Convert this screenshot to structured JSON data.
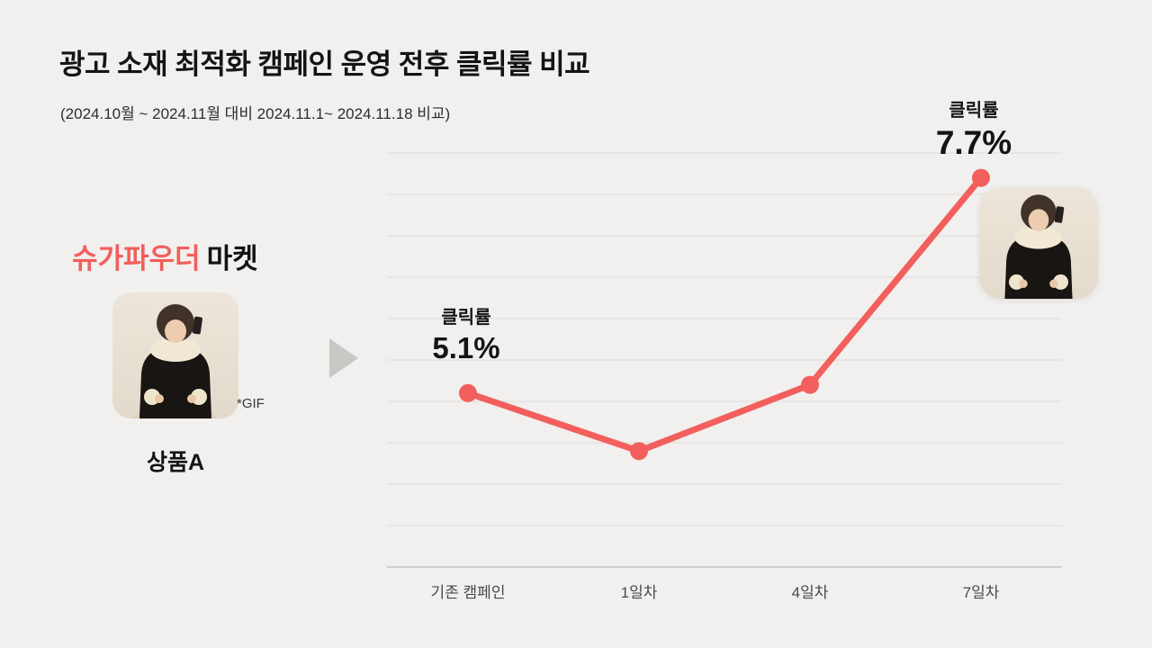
{
  "header": {
    "title": "광고 소재 최적화 캠페인 운영 전후 클릭률 비교",
    "subtitle": "(2024.10월 ~ 2024.11월 대비 2024.11.1~ 2024.11.18 비교)"
  },
  "product_panel": {
    "brand_highlight": "슈가파우더",
    "brand_suffix": "마켓",
    "gif_note": "*GIF",
    "product_name": "상품A"
  },
  "chart_data": {
    "type": "line",
    "title": "광고 소재 최적화 캠페인 운영 전후 클릭률 비교",
    "categories": [
      "기존 캠페인",
      "1일차",
      "4일차",
      "7일차"
    ],
    "series": [
      {
        "name": "클릭률",
        "values": [
          5.1,
          4.4,
          5.2,
          7.7
        ]
      }
    ],
    "xlabel": "",
    "ylabel": "",
    "ylim": [
      3,
      8
    ],
    "grid": true,
    "gridline_count": 10,
    "legend": "none",
    "line_color": "#f25f5c",
    "annotations": [
      {
        "category": "기존 캠페인",
        "label": "클릭률",
        "value": "5.1%"
      },
      {
        "category": "7일차",
        "label": "클릭률",
        "value": "7.7%"
      }
    ]
  },
  "colors": {
    "background": "#f1f0ee",
    "accent": "#f25f5c",
    "gridline": "#dedcd7",
    "axis": "#c6c5c0",
    "text": "#141414",
    "muted_text": "#4a4a4a"
  }
}
